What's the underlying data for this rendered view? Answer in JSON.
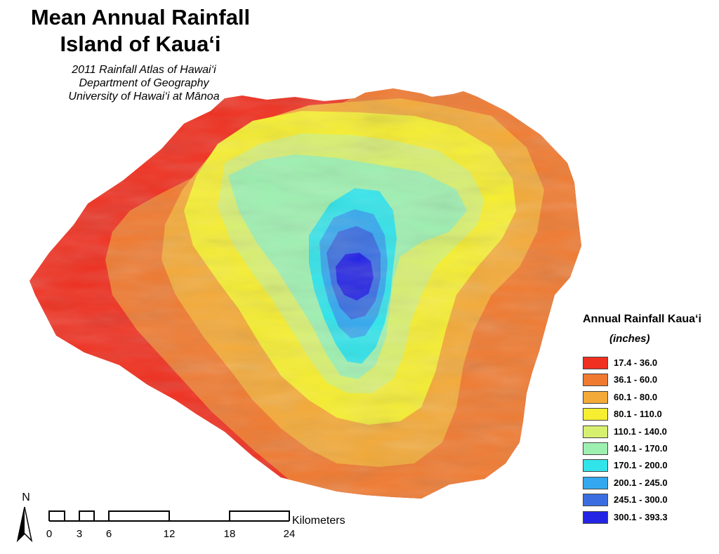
{
  "title": {
    "line1": "Mean Annual Rainfall",
    "line2": "Island of Kaua‘i"
  },
  "subtitle": {
    "line1": "2011 Rainfall Atlas of Hawai‘i",
    "line2": "Department of Geography",
    "line3": "University of Hawai‘i at Mānoa"
  },
  "legend": {
    "title": "Annual Rainfall Kaua‘i",
    "units": "(inches)",
    "classes": [
      {
        "label": "17.4 - 36.0",
        "color": "#f03020"
      },
      {
        "label": "36.1 - 60.0",
        "color": "#f07a30"
      },
      {
        "label": "60.1 - 80.0",
        "color": "#f4aa38"
      },
      {
        "label": "80.1 - 110.0",
        "color": "#f6ee30"
      },
      {
        "label": "110.1 - 140.0",
        "color": "#d8f070"
      },
      {
        "label": "140.1 - 170.0",
        "color": "#9ef0b0"
      },
      {
        "label": "170.1 - 200.0",
        "color": "#30e4ea"
      },
      {
        "label": "200.1 - 245.0",
        "color": "#34a8ee"
      },
      {
        "label": "245.1 - 300.0",
        "color": "#3a6ee0"
      },
      {
        "label": "300.1 - 393.3",
        "color": "#2424e4"
      }
    ]
  },
  "north_arrow": {
    "label": "N"
  },
  "scale_bar": {
    "unit": "Kilometers",
    "ticks": [
      "0",
      "3",
      "6",
      "12",
      "18",
      "24"
    ]
  }
}
